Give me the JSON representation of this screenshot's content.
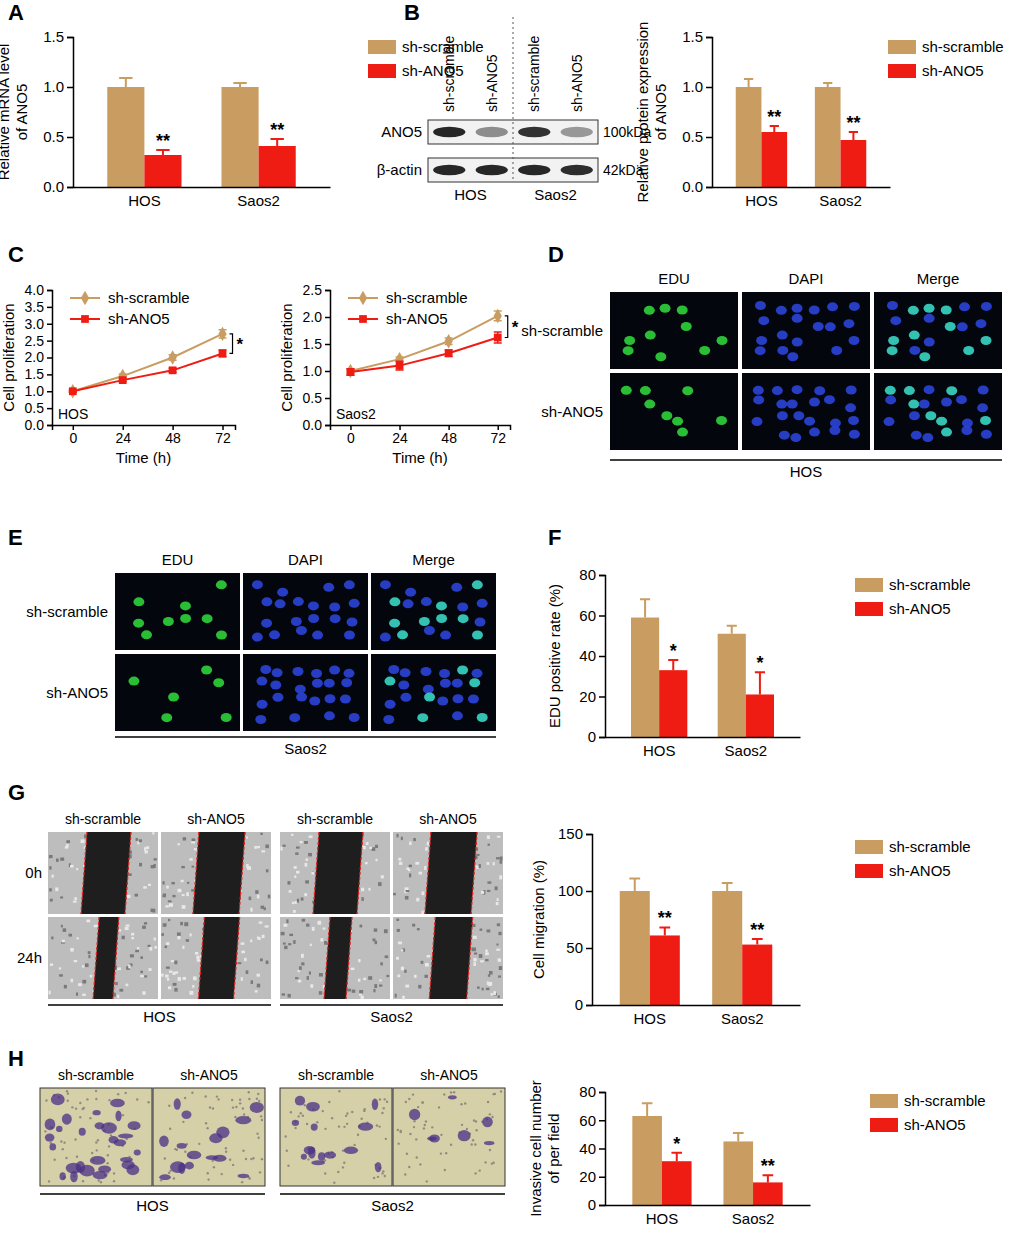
{
  "chart_data": [
    {
      "panel": "A",
      "type": "bar",
      "y_label": [
        "Relative mRNA level",
        "of ANO5"
      ],
      "categories": [
        "HOS",
        "Saos2"
      ],
      "series": [
        {
          "name": "sh-scramble",
          "color": "#c99d61",
          "values": [
            1.0,
            1.0
          ],
          "errors": [
            0.09,
            0.04
          ]
        },
        {
          "name": "sh-ANO5",
          "color": "#ee1c12",
          "values": [
            0.32,
            0.41
          ],
          "errors": [
            0.05,
            0.07
          ],
          "annotations": [
            "**",
            "**"
          ]
        }
      ],
      "ylim": [
        0,
        1.5
      ],
      "yticks": [
        {
          "value": 0,
          "label": "0.0"
        },
        0.5,
        {
          "value": 1,
          "label": "1.0"
        },
        1.5
      ],
      "legend": "right"
    },
    {
      "panel": "B",
      "type": "bar",
      "y_label": [
        "Relative protein expression",
        "of ANO5"
      ],
      "categories": [
        "HOS",
        "Saos2"
      ],
      "series": [
        {
          "name": "sh-scramble",
          "color": "#c99d61",
          "values": [
            1.0,
            1.0
          ],
          "errors": [
            0.08,
            0.04
          ]
        },
        {
          "name": "sh-ANO5",
          "color": "#ee1c12",
          "values": [
            0.55,
            0.47
          ],
          "errors": [
            0.06,
            0.08
          ],
          "annotations": [
            "**",
            "**"
          ]
        }
      ],
      "ylim": [
        0,
        1.5
      ],
      "yticks": [
        {
          "value": 0,
          "label": "0.0"
        },
        0.5,
        {
          "value": 1,
          "label": "1.0"
        },
        1.5
      ],
      "legend": "right"
    },
    {
      "panel": "C",
      "type": "line",
      "x_label": "Time (h)",
      "y_label": [
        "Cell proliferation"
      ],
      "x": [
        0,
        24,
        48,
        72
      ],
      "xlim": [
        -10,
        78
      ],
      "xticks": [
        0,
        24,
        48,
        72
      ],
      "ylim": [
        0,
        4
      ],
      "yticks": [
        {
          "value": 0,
          "label": "0.0"
        },
        0.5,
        {
          "value": 1,
          "label": "1.0"
        },
        1.5,
        {
          "value": 2,
          "label": "2.0"
        },
        2.5,
        {
          "value": 3,
          "label": "3.0"
        },
        3.5,
        {
          "value": 4,
          "label": "4.0"
        }
      ],
      "series": [
        {
          "name": "sh-scramble",
          "color": "#c99d61",
          "marker": "diamond",
          "values": [
            1.0,
            1.45,
            2.0,
            2.7
          ],
          "errors": [
            0.03,
            0.06,
            0.08,
            0.12
          ]
        },
        {
          "name": "sh-ANO5",
          "color": "#ee1c12",
          "marker": "square",
          "values": [
            1.0,
            1.33,
            1.62,
            2.12
          ],
          "errors": [
            0.03,
            0.05,
            0.06,
            0.1
          ]
        }
      ],
      "annotations": [
        {
          "text": "HOS"
        },
        {
          "text": "*",
          "x": 72
        }
      ],
      "legend": "upper left"
    },
    {
      "type": "line",
      "x_label": "Time (h)",
      "y_label": [
        "Cell proliferation"
      ],
      "x": [
        0,
        24,
        48,
        72
      ],
      "xlim": [
        -10,
        78
      ],
      "xticks": [
        0,
        24,
        48,
        72
      ],
      "ylim": [
        0,
        2.5
      ],
      "yticks": [
        {
          "value": 0,
          "label": "0.0"
        },
        0.5,
        {
          "value": 1,
          "label": "1.0"
        },
        1.5,
        {
          "value": 2,
          "label": "2.0"
        },
        2.5
      ],
      "series": [
        {
          "name": "sh-scramble",
          "color": "#c99d61",
          "marker": "diamond",
          "values": [
            1.0,
            1.22,
            1.55,
            2.02
          ],
          "errors": [
            0.04,
            0.04,
            0.06,
            0.09
          ]
        },
        {
          "name": "sh-ANO5",
          "color": "#ee1c12",
          "marker": "square",
          "values": [
            0.98,
            1.1,
            1.33,
            1.62
          ],
          "errors": [
            0.06,
            0.08,
            0.06,
            0.1
          ]
        }
      ],
      "annotations": [
        {
          "text": "Saos2"
        },
        {
          "text": "*",
          "x": 72
        }
      ],
      "legend": "upper left"
    },
    {
      "panel": "F",
      "type": "bar",
      "y_label": [
        "EDU positive rate (%)"
      ],
      "categories": [
        "HOS",
        "Saos2"
      ],
      "series": [
        {
          "name": "sh-scramble",
          "color": "#c99d61",
          "values": [
            59,
            51
          ],
          "errors": [
            9,
            4
          ]
        },
        {
          "name": "sh-ANO5",
          "color": "#ee1c12",
          "values": [
            33,
            21
          ],
          "errors": [
            5,
            11
          ],
          "annotations": [
            "*",
            "*"
          ]
        }
      ],
      "ylim": [
        0,
        80
      ],
      "yticks": [
        0,
        20,
        40,
        60,
        80
      ],
      "legend": "right"
    },
    {
      "type": "bar",
      "y_label": [
        "Cell migration (%)"
      ],
      "categories": [
        "HOS",
        "Saos2"
      ],
      "series": [
        {
          "name": "sh-scramble",
          "color": "#c99d61",
          "values": [
            100,
            100
          ],
          "errors": [
            11,
            7
          ]
        },
        {
          "name": "sh-ANO5",
          "color": "#ee1c12",
          "values": [
            61,
            53
          ],
          "errors": [
            7,
            5
          ],
          "annotations": [
            "**",
            "**"
          ]
        }
      ],
      "ylim": [
        0,
        150
      ],
      "yticks": [
        0,
        50,
        100,
        150
      ],
      "legend": "right"
    },
    {
      "type": "bar",
      "y_label": [
        "Invasive cell number",
        "of per field"
      ],
      "categories": [
        "HOS",
        "Saos2"
      ],
      "series": [
        {
          "name": "sh-scramble",
          "color": "#c99d61",
          "values": [
            63,
            45
          ],
          "errors": [
            9,
            6
          ]
        },
        {
          "name": "sh-ANO5",
          "color": "#ee1c12",
          "values": [
            31,
            16
          ],
          "errors": [
            6,
            5
          ],
          "annotations": [
            "*",
            "**"
          ]
        }
      ],
      "ylim": [
        0,
        80
      ],
      "yticks": [
        0,
        20,
        40,
        60,
        80
      ],
      "legend": "right"
    }
  ],
  "images": {
    "B": {
      "lanes": [
        "sh-scramble",
        "sh-ANO5",
        "sh-scramble",
        "sh-ANO5"
      ],
      "rows": [
        {
          "label": "ANO5",
          "size": "100kDa"
        },
        {
          "label": "β-actin",
          "size": "42kDa"
        }
      ],
      "groups": [
        "HOS",
        "Saos2"
      ]
    },
    "D": {
      "panel": "D",
      "columns": [
        "EDU",
        "DAPI",
        "Merge"
      ],
      "rows": [
        "sh-scramble",
        "sh-ANO5"
      ],
      "caption": "HOS"
    },
    "E": {
      "panel": "E",
      "columns": [
        "EDU",
        "DAPI",
        "Merge"
      ],
      "rows": [
        "sh-scramble",
        "sh-ANO5"
      ],
      "caption": "Saos2"
    },
    "G": {
      "panel": "G",
      "columns": [
        "sh-scramble",
        "sh-ANO5",
        "sh-scramble",
        "sh-ANO5"
      ],
      "rows": [
        "0h",
        "24h"
      ],
      "groups": [
        "HOS",
        "Saos2"
      ]
    },
    "H": {
      "panel": "H",
      "columns": [
        "sh-scramble",
        "sh-ANO5",
        "sh-scramble",
        "sh-ANO5"
      ],
      "groups": [
        "HOS",
        "Saos2"
      ]
    }
  }
}
